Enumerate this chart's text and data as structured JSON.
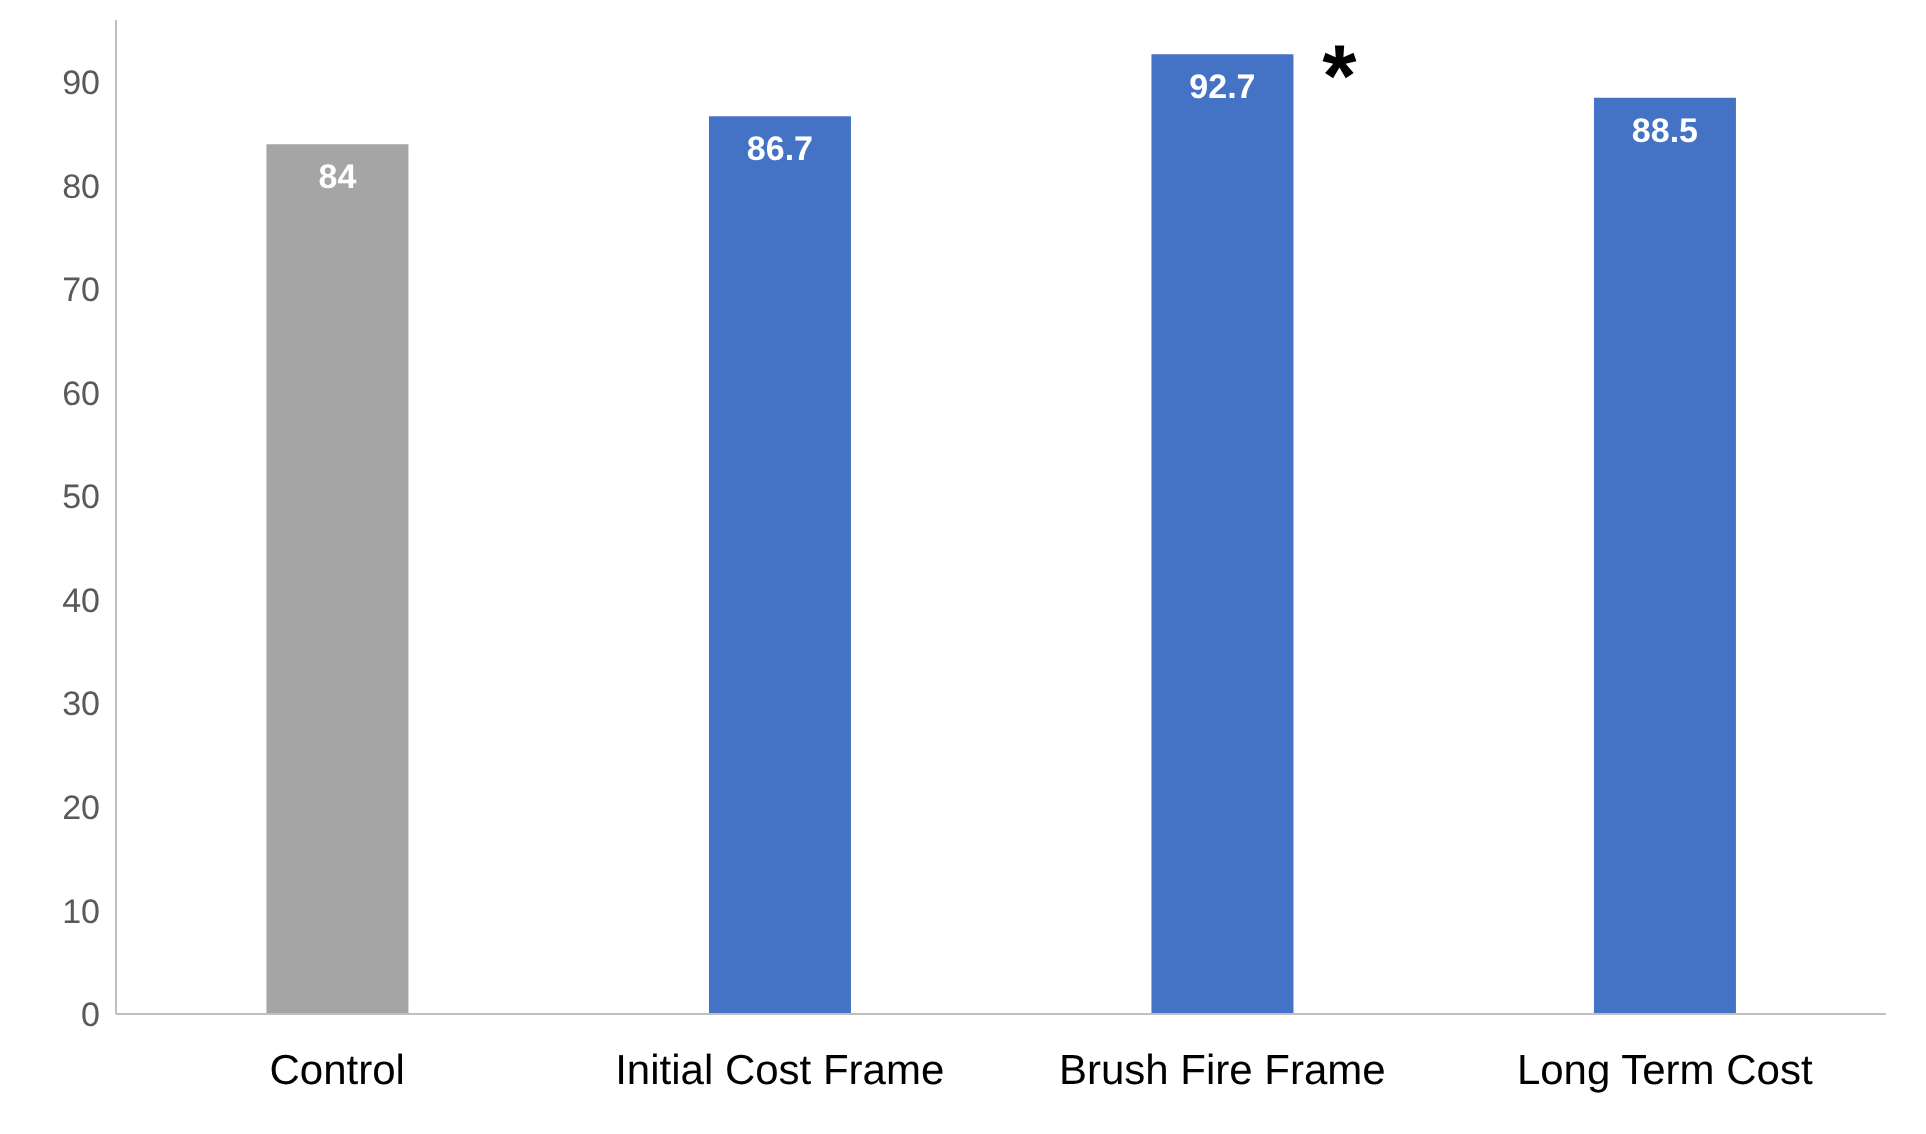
{
  "chart_data": {
    "type": "bar",
    "categories": [
      "Control",
      "Initial Cost Frame",
      "Brush Fire Frame",
      "Long Term Cost"
    ],
    "values": [
      84,
      86.7,
      92.7,
      88.5
    ],
    "colors": [
      "#a5a5a5",
      "#4472c4",
      "#4472c4",
      "#4472c4"
    ],
    "ylim": [
      0,
      96
    ],
    "yticks": [
      0,
      10,
      20,
      30,
      40,
      50,
      60,
      70,
      80,
      90
    ],
    "grid": false,
    "data_labels": true,
    "annotations": [
      {
        "text": "*",
        "x": "Brush Fire Frame",
        "y": 92.7
      }
    ]
  }
}
